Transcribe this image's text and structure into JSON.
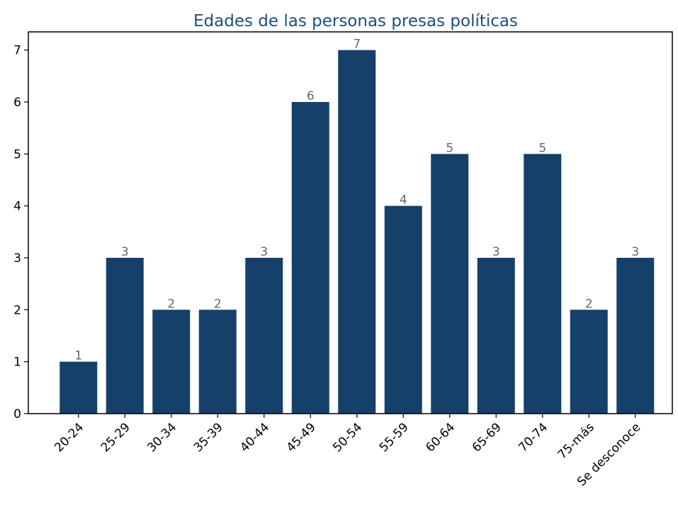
{
  "colors": {
    "bar": "#15406a",
    "title": "#1f4e79",
    "data_label": "#666666",
    "axis": "#000000"
  },
  "chart_data": {
    "type": "bar",
    "title": "Edades de las personas presas políticas",
    "xlabel": "",
    "ylabel": "",
    "categories": [
      "20-24",
      "25-29",
      "30-34",
      "35-39",
      "40-44",
      "45-49",
      "50-54",
      "55-59",
      "60-64",
      "65-69",
      "70-74",
      "75-más",
      "Se desconoce"
    ],
    "values": [
      1,
      3,
      2,
      2,
      3,
      6,
      7,
      4,
      5,
      3,
      5,
      2,
      3
    ],
    "ylim": [
      0,
      7.35
    ],
    "yticks": [
      0,
      1,
      2,
      3,
      4,
      5,
      6,
      7
    ],
    "data_labels": true,
    "xtick_rotation": "45 degrees",
    "grid": false,
    "legend": "none"
  }
}
